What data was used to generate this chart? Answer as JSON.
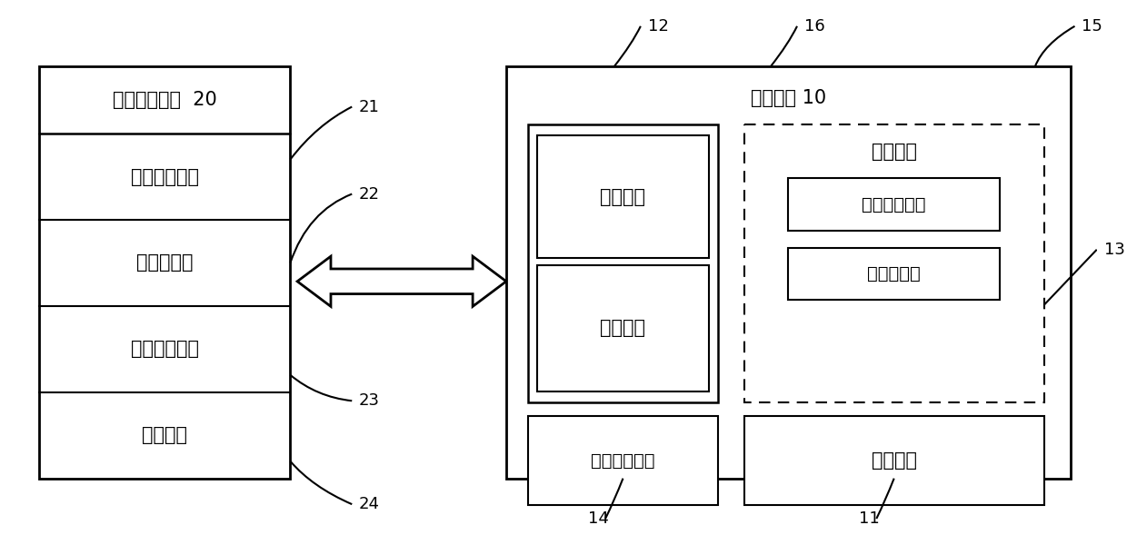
{
  "bg_color": "#ffffff",
  "fig_width": 12.4,
  "fig_height": 5.89,
  "left_device_label": "智能穿戴设备  20",
  "left_modules": [
    "验证信息模块",
    "加解密模块",
    "无线通信模块",
    "电源模块"
  ],
  "left_module_labels": [
    "21",
    "22",
    "23",
    "24"
  ],
  "right_device_label": "移动终端 10",
  "app_label": "应用程序",
  "os_label": "操作系统",
  "left_col_num": "12",
  "wireless_label": "无线通信模块",
  "wireless_num": "14",
  "process_label": "处理模块",
  "process_num": "11",
  "security_area_label": "安全区域",
  "security_modules": [
    "实时监控模块",
    "加解密模块"
  ],
  "security_num": "13",
  "security_area_num": "15",
  "security_dashed_num": "16",
  "font_size_module": 14,
  "font_size_number": 13
}
